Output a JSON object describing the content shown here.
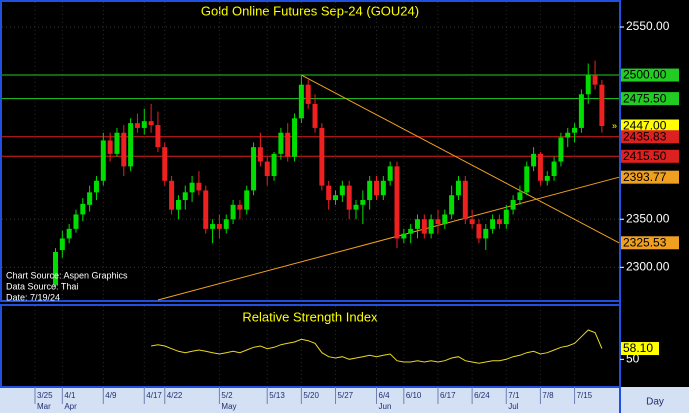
{
  "chart_data": {
    "type": "candlestick",
    "title": "Gold  Online  Futures  Sep-24  (GOU24)",
    "categories": [
      "3/25",
      null,
      null,
      null,
      "4/1",
      null,
      null,
      null,
      null,
      null,
      "4/9",
      null,
      null,
      null,
      null,
      null,
      "4/17",
      null,
      null,
      "4/22",
      null,
      null,
      null,
      null,
      null,
      null,
      null,
      "5/2",
      null,
      null,
      null,
      null,
      null,
      null,
      "5/13",
      null,
      null,
      null,
      null,
      "5/20",
      null,
      null,
      null,
      null,
      "5/27",
      null,
      null,
      null,
      null,
      null,
      "6/4",
      null,
      null,
      null,
      "6/10",
      null,
      null,
      null,
      null,
      "6/17",
      null,
      null,
      null,
      null,
      "6/24",
      null,
      null,
      null,
      null,
      "7/1",
      null,
      null,
      null,
      null,
      "7/8",
      null,
      null,
      null,
      null,
      "7/15",
      null,
      null,
      null,
      null
    ],
    "months": [
      "Mar",
      "Apr",
      "May",
      "Jun",
      "Jul"
    ],
    "x_unit": "Day",
    "open": [
      null,
      null,
      null,
      2282,
      2318,
      2330,
      2340,
      2355,
      2365,
      2378,
      2390,
      2432,
      2418,
      2440,
      2405,
      2450,
      2445,
      2452,
      2448,
      2425,
      2390,
      2360,
      2370,
      2378,
      2388,
      2380,
      2340,
      2345,
      2340,
      2350,
      2365,
      2360,
      2380,
      2425,
      2410,
      2395,
      2418,
      2440,
      2415,
      2455,
      2490,
      2470,
      2445,
      2385,
      2370,
      2375,
      2385,
      2360,
      2365,
      2370,
      2390,
      2375,
      2390,
      2405,
      2330,
      2335,
      2340,
      2350,
      2335,
      2350,
      2345,
      2355,
      2375,
      2390,
      2350,
      2345,
      2330,
      2340,
      2350,
      2345,
      2360,
      2370,
      2378,
      2405,
      2418,
      2390,
      2395,
      2410,
      2435,
      2440,
      2445,
      2480,
      2500,
      2490
    ],
    "high": [
      null,
      null,
      null,
      2320,
      2338,
      2345,
      2360,
      2372,
      2385,
      2395,
      2440,
      2440,
      2445,
      2448,
      2455,
      2460,
      2465,
      2470,
      2462,
      2430,
      2395,
      2375,
      2385,
      2395,
      2400,
      2385,
      2350,
      2355,
      2355,
      2370,
      2370,
      2385,
      2430,
      2440,
      2415,
      2420,
      2445,
      2450,
      2460,
      2500,
      2495,
      2480,
      2450,
      2390,
      2380,
      2390,
      2390,
      2370,
      2380,
      2395,
      2395,
      2395,
      2410,
      2410,
      2340,
      2345,
      2355,
      2355,
      2355,
      2360,
      2360,
      2385,
      2395,
      2395,
      2360,
      2350,
      2345,
      2355,
      2355,
      2365,
      2375,
      2385,
      2410,
      2425,
      2420,
      2400,
      2415,
      2440,
      2445,
      2450,
      2485,
      2512,
      2515,
      2495
    ],
    "low": [
      null,
      null,
      null,
      2278,
      2310,
      2325,
      2336,
      2348,
      2358,
      2370,
      2385,
      2410,
      2415,
      2395,
      2400,
      2440,
      2438,
      2440,
      2420,
      2385,
      2355,
      2350,
      2360,
      2368,
      2375,
      2335,
      2325,
      2330,
      2335,
      2345,
      2350,
      2355,
      2375,
      2405,
      2385,
      2390,
      2412,
      2410,
      2410,
      2450,
      2465,
      2440,
      2380,
      2360,
      2365,
      2368,
      2350,
      2350,
      2345,
      2360,
      2370,
      2370,
      2385,
      2320,
      2325,
      2325,
      2330,
      2330,
      2330,
      2335,
      2340,
      2350,
      2370,
      2345,
      2340,
      2325,
      2318,
      2335,
      2340,
      2340,
      2355,
      2365,
      2375,
      2400,
      2385,
      2385,
      2390,
      2405,
      2425,
      2430,
      2440,
      2470,
      2485,
      2440
    ],
    "close": [
      null,
      null,
      null,
      2316,
      2330,
      2340,
      2355,
      2366,
      2378,
      2390,
      2432,
      2418,
      2440,
      2405,
      2450,
      2445,
      2452,
      2448,
      2425,
      2390,
      2360,
      2370,
      2378,
      2388,
      2380,
      2340,
      2345,
      2340,
      2350,
      2365,
      2360,
      2380,
      2425,
      2410,
      2395,
      2418,
      2440,
      2415,
      2455,
      2490,
      2470,
      2445,
      2385,
      2370,
      2375,
      2385,
      2360,
      2365,
      2370,
      2390,
      2375,
      2390,
      2405,
      2330,
      2335,
      2340,
      2350,
      2335,
      2350,
      2345,
      2355,
      2375,
      2390,
      2350,
      2345,
      2330,
      2340,
      2350,
      2345,
      2360,
      2370,
      2378,
      2405,
      2418,
      2390,
      2395,
      2410,
      2435,
      2440,
      2445,
      2480,
      2500,
      2490,
      2447
    ],
    "up_color": "#00dd00",
    "down_color": "#ee2020",
    "ylim": [
      2266,
      2576
    ],
    "yticks": [
      {
        "value": 2300,
        "label": "2300.00"
      },
      {
        "value": 2350,
        "label": "2350.00"
      },
      {
        "value": 2550,
        "label": "2550.00"
      }
    ],
    "grid": true,
    "levels": [
      {
        "value": 2500,
        "label": "2500.00",
        "color": "#22cc22",
        "text_color": "#000000"
      },
      {
        "value": 2475.5,
        "label": "2475.50",
        "color": "#22cc22",
        "text_color": "#000000"
      },
      {
        "value": 2447,
        "label": "2447.00",
        "color": "#ffff00",
        "text_color": "#000000",
        "line": false
      },
      {
        "value": 2435.83,
        "label": "2435.83",
        "color": "#dd2020",
        "text_color": "#000000"
      },
      {
        "value": 2415.5,
        "label": "2415.50",
        "color": "#dd2020",
        "text_color": "#000000"
      }
    ],
    "trendlines": [
      {
        "start_index": 39,
        "start_value": 2500,
        "end_value": 2325.53,
        "label": "2325.53",
        "color": "#f0a020"
      },
      {
        "start_index": 18,
        "start_value": 2266,
        "end_value": 2393.77,
        "label": "2393.77",
        "color": "#f0a020"
      }
    ],
    "annotations": [
      "Chart Source: Aspen Graphics",
      "Data Source: Thai",
      "Date: 7/19/24"
    ],
    "rsi": {
      "type": "line",
      "title": "Relative Strength Index",
      "color": "#e8d820",
      "values": [
        null,
        null,
        null,
        null,
        null,
        null,
        null,
        null,
        null,
        null,
        null,
        null,
        null,
        null,
        null,
        null,
        null,
        60,
        61,
        60,
        58,
        56,
        55,
        56,
        57,
        56,
        55,
        54,
        55,
        56,
        55,
        57,
        59,
        60,
        58,
        59,
        61,
        62,
        63,
        65,
        64,
        62,
        55,
        52,
        51,
        52,
        50,
        51,
        52,
        53,
        52,
        53,
        54,
        49,
        48,
        48,
        49,
        48,
        49,
        48,
        49,
        51,
        52,
        49,
        48,
        47,
        48,
        49,
        49,
        50,
        52,
        53,
        55,
        56,
        54,
        55,
        57,
        59,
        60,
        62,
        67,
        72,
        70,
        58.1
      ],
      "ylim": [
        30,
        90
      ],
      "yticks": [
        50
      ],
      "levels": [
        {
          "value": 58.1,
          "label": "58.10",
          "color": "#ffff00",
          "text_color": "#000000"
        }
      ]
    }
  }
}
